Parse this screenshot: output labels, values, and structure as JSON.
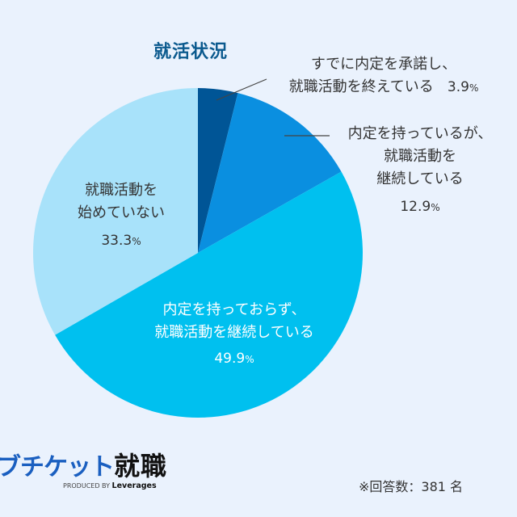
{
  "chart_data": {
    "type": "pie",
    "title": "就活状況",
    "start_angle": "12 o'clock",
    "direction": "clockwise",
    "slices": [
      {
        "label": "すでに内定を承諾し、就職活動を終えている",
        "value": 3.9,
        "color": "#005596"
      },
      {
        "label": "内定を持っているが、就職活動を継続している",
        "value": 12.9,
        "color": "#0a8fe0"
      },
      {
        "label": "内定を持っておらず、就職活動を継続している",
        "value": 49.9,
        "color": "#00c0ef"
      },
      {
        "label": "就職活動を始めていない",
        "value": 33.3,
        "color": "#a8e2fa"
      }
    ],
    "note": "※回答数：381 名"
  },
  "title": "就活状況",
  "labels": {
    "s1": {
      "line1": "すでに内定を承諾し、",
      "line2": "就職活動を終えている",
      "pct": "3.9",
      "unit": "%"
    },
    "s2": {
      "line1": "内定を持っているが、",
      "line2": "就職活動を",
      "line3": "継続している",
      "pct": "12.9",
      "unit": "%"
    },
    "s3": {
      "line1": "内定を持っておらず、",
      "line2": "就職活動を継続している",
      "pct": "49.9",
      "unit": "%"
    },
    "s4": {
      "line1": "就職活動を",
      "line2": "始めていない",
      "pct": "33.3",
      "unit": "%"
    }
  },
  "logo": {
    "main_blue": "ブチケット",
    "main_dark": "就職",
    "produced_by": "PRODUCED BY",
    "brand": "Leverages"
  },
  "footnote": "※回答数：381 名"
}
